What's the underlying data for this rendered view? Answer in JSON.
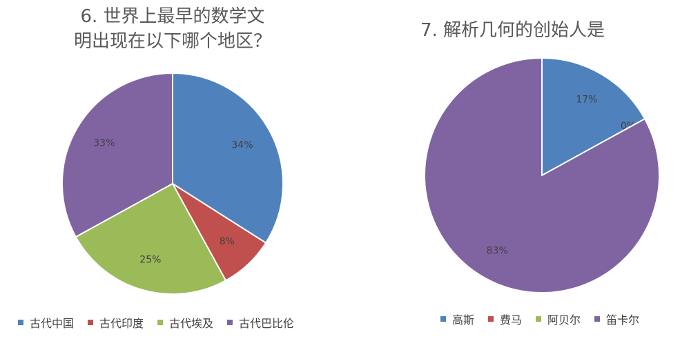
{
  "chart_data": [
    {
      "type": "pie",
      "title": "6. 世界上最早的数学文明出现在以下哪个地区？",
      "title_lines": [
        "6. 世界上最早的数学文",
        "明出现在以下哪个地区？"
      ],
      "categories": [
        "古代中国",
        "古代印度",
        "古代埃及",
        "古代巴比伦"
      ],
      "values": [
        34,
        8,
        25,
        33
      ],
      "labels": [
        "34%",
        "8%",
        "25%",
        "33%"
      ],
      "colors": [
        "#4f81bd",
        "#c0504d",
        "#9bbb59",
        "#8064a2"
      ],
      "legend_position": "bottom",
      "start_angle": "12 o'clock, clockwise"
    },
    {
      "type": "pie",
      "title": "7. 解析几何的创始人是",
      "title_lines": [
        "7. 解析几何的创始人是"
      ],
      "categories": [
        "高斯",
        "费马",
        "阿贝尔",
        "笛卡尔"
      ],
      "values": [
        17,
        0,
        0,
        83
      ],
      "labels": [
        "17%",
        "",
        "0%",
        "83%"
      ],
      "colors": [
        "#4f81bd",
        "#c0504d",
        "#9bbb59",
        "#8064a2"
      ],
      "legend_position": "bottom",
      "start_angle": "12 o'clock, clockwise"
    }
  ]
}
